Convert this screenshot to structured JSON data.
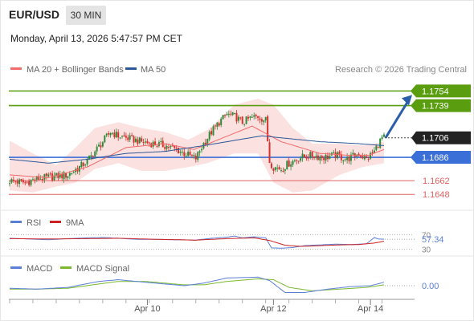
{
  "header": {
    "pair": "EUR/USD",
    "timeframe": "30 MIN",
    "datetime": "Monday, April 13, 2026 5:47:57 PM CET"
  },
  "colors": {
    "ma20": "#f06b6b",
    "ma50": "#2b5797",
    "bb_fill": "#fcdcdc",
    "bull": "#2e8b3a",
    "bear": "#d9302c",
    "resistance": "#5a9e10",
    "pivot": "#3a6fd8",
    "support": "#e06060",
    "price_tag": "#222222",
    "rsi": "#5b7fd6",
    "rsi_ma": "#cc2222",
    "macd": "#5b7fd6",
    "macd_signal": "#7ab830",
    "arrow": "#2b5ea8"
  },
  "chart_data": [
    {
      "type": "candlestick",
      "title": "",
      "legend": {
        "position": "top-left",
        "items": [
          "MA 20 + Bollinger Bands",
          "MA 50"
        ]
      },
      "credit": "Research © 2026 Trading Central",
      "x_ticks": [
        "Apr 10",
        "Apr 12",
        "Apr 14"
      ],
      "ylim": [
        1.1635,
        1.1765
      ],
      "last_price": "1.1706",
      "levels": [
        {
          "label": "1.1754",
          "value": 1.1754,
          "kind": "resistance"
        },
        {
          "label": "1.1739",
          "value": 1.1739,
          "kind": "resistance"
        },
        {
          "label": "1.1686",
          "value": 1.1686,
          "kind": "pivot"
        },
        {
          "label": "1.1662",
          "value": 1.1662,
          "kind": "support"
        },
        {
          "label": "1.1648",
          "value": 1.1648,
          "kind": "support"
        }
      ],
      "close_path": [
        [
          0,
          1.1662
        ],
        [
          8,
          1.166
        ],
        [
          14,
          1.1664
        ],
        [
          22,
          1.1666
        ],
        [
          30,
          1.1668
        ],
        [
          36,
          1.1676
        ],
        [
          40,
          1.1682
        ],
        [
          44,
          1.1692
        ],
        [
          48,
          1.1702
        ],
        [
          52,
          1.1712
        ],
        [
          56,
          1.1708
        ],
        [
          62,
          1.1705
        ],
        [
          68,
          1.1702
        ],
        [
          74,
          1.17
        ],
        [
          80,
          1.1698
        ],
        [
          86,
          1.1694
        ],
        [
          90,
          1.169
        ],
        [
          96,
          1.1685
        ],
        [
          100,
          1.17
        ],
        [
          104,
          1.1712
        ],
        [
          108,
          1.1722
        ],
        [
          112,
          1.173
        ],
        [
          116,
          1.1728
        ],
        [
          120,
          1.1722
        ],
        [
          124,
          1.1726
        ],
        [
          128,
          1.1728
        ],
        [
          132,
          1.1724
        ],
        [
          134,
          1.1682
        ],
        [
          136,
          1.1676
        ],
        [
          140,
          1.1674
        ],
        [
          144,
          1.168
        ],
        [
          150,
          1.1686
        ],
        [
          156,
          1.1688
        ],
        [
          162,
          1.1686
        ],
        [
          168,
          1.1688
        ],
        [
          174,
          1.1684
        ],
        [
          180,
          1.169
        ],
        [
          184,
          1.1684
        ],
        [
          188,
          1.1692
        ],
        [
          190,
          1.17
        ],
        [
          192,
          1.1706
        ],
        [
          193,
          1.1706
        ]
      ],
      "ma20_path": [
        [
          0,
          1.1668
        ],
        [
          20,
          1.1665
        ],
        [
          40,
          1.1676
        ],
        [
          60,
          1.1696
        ],
        [
          80,
          1.17
        ],
        [
          95,
          1.1694
        ],
        [
          110,
          1.1706
        ],
        [
          125,
          1.1718
        ],
        [
          140,
          1.1702
        ],
        [
          160,
          1.169
        ],
        [
          175,
          1.1688
        ],
        [
          185,
          1.1688
        ],
        [
          193,
          1.1694
        ]
      ],
      "ma50_path": [
        [
          0,
          1.1684
        ],
        [
          20,
          1.168
        ],
        [
          40,
          1.1684
        ],
        [
          60,
          1.169
        ],
        [
          80,
          1.1692
        ],
        [
          100,
          1.1698
        ],
        [
          115,
          1.1703
        ],
        [
          130,
          1.1708
        ],
        [
          140,
          1.1706
        ],
        [
          160,
          1.1702
        ],
        [
          180,
          1.17
        ],
        [
          193,
          1.1698
        ]
      ],
      "bb_upper_path": [
        [
          0,
          1.1703
        ],
        [
          12,
          1.169
        ],
        [
          24,
          1.1678
        ],
        [
          34,
          1.1696
        ],
        [
          44,
          1.1716
        ],
        [
          56,
          1.1722
        ],
        [
          68,
          1.1716
        ],
        [
          80,
          1.1712
        ],
        [
          92,
          1.1704
        ],
        [
          102,
          1.1714
        ],
        [
          116,
          1.174
        ],
        [
          128,
          1.1746
        ],
        [
          136,
          1.174
        ],
        [
          146,
          1.1716
        ],
        [
          156,
          1.17
        ],
        [
          170,
          1.17
        ],
        [
          182,
          1.1698
        ],
        [
          193,
          1.1702
        ]
      ],
      "bb_lower_path": [
        [
          0,
          1.1652
        ],
        [
          12,
          1.165
        ],
        [
          24,
          1.1656
        ],
        [
          34,
          1.166
        ],
        [
          44,
          1.1674
        ],
        [
          56,
          1.168
        ],
        [
          68,
          1.1672
        ],
        [
          80,
          1.1672
        ],
        [
          92,
          1.1676
        ],
        [
          102,
          1.168
        ],
        [
          116,
          1.169
        ],
        [
          128,
          1.169
        ],
        [
          136,
          1.166
        ],
        [
          146,
          1.165
        ],
        [
          156,
          1.1652
        ],
        [
          170,
          1.1668
        ],
        [
          182,
          1.1676
        ],
        [
          193,
          1.168
        ]
      ]
    },
    {
      "type": "line",
      "title": "",
      "legend": {
        "position": "top-left",
        "items": [
          "RSI",
          "9MA"
        ]
      },
      "ylim": [
        25,
        75
      ],
      "y_ticks": [
        "70",
        "30"
      ],
      "last_value": "57.34",
      "rsi_path": [
        [
          0,
          60
        ],
        [
          10,
          58
        ],
        [
          20,
          56
        ],
        [
          30,
          59
        ],
        [
          40,
          61
        ],
        [
          48,
          62
        ],
        [
          56,
          60
        ],
        [
          66,
          57
        ],
        [
          76,
          57
        ],
        [
          86,
          56
        ],
        [
          96,
          55
        ],
        [
          104,
          60
        ],
        [
          112,
          63
        ],
        [
          116,
          66
        ],
        [
          120,
          61
        ],
        [
          126,
          64
        ],
        [
          132,
          61
        ],
        [
          135,
          34
        ],
        [
          140,
          33
        ],
        [
          146,
          35
        ],
        [
          152,
          40
        ],
        [
          160,
          42
        ],
        [
          168,
          44
        ],
        [
          176,
          43
        ],
        [
          184,
          45
        ],
        [
          188,
          62
        ],
        [
          190,
          58
        ],
        [
          193,
          57.34
        ]
      ],
      "ma9_path": [
        [
          0,
          59
        ],
        [
          20,
          58
        ],
        [
          40,
          59
        ],
        [
          56,
          60
        ],
        [
          76,
          57
        ],
        [
          96,
          55
        ],
        [
          112,
          59
        ],
        [
          126,
          61
        ],
        [
          134,
          54
        ],
        [
          142,
          41
        ],
        [
          150,
          38
        ],
        [
          160,
          40
        ],
        [
          170,
          42
        ],
        [
          180,
          43
        ],
        [
          188,
          47
        ],
        [
          193,
          52
        ]
      ]
    },
    {
      "type": "line",
      "title": "",
      "legend": {
        "position": "top-left",
        "items": [
          "MACD",
          "MACD Signal"
        ]
      },
      "ylim": [
        -0.003,
        0.003
      ],
      "last_value": "0.00",
      "macd_path": [
        [
          0,
          -0.0006
        ],
        [
          14,
          -0.0008
        ],
        [
          30,
          -0.0004
        ],
        [
          46,
          0.001
        ],
        [
          56,
          0.0014
        ],
        [
          70,
          0.0008
        ],
        [
          90,
          0.0
        ],
        [
          100,
          0.0006
        ],
        [
          112,
          0.0018
        ],
        [
          128,
          0.002
        ],
        [
          134,
          0.0012
        ],
        [
          142,
          -0.0016
        ],
        [
          152,
          -0.0016
        ],
        [
          164,
          -0.0008
        ],
        [
          176,
          -0.0002
        ],
        [
          186,
          0.0
        ],
        [
          193,
          0.0008
        ]
      ],
      "signal_path": [
        [
          0,
          -0.0008
        ],
        [
          14,
          -0.0008
        ],
        [
          30,
          -0.0006
        ],
        [
          46,
          0.0004
        ],
        [
          56,
          0.001
        ],
        [
          70,
          0.001
        ],
        [
          90,
          0.0002
        ],
        [
          100,
          0.0002
        ],
        [
          112,
          0.001
        ],
        [
          128,
          0.0016
        ],
        [
          136,
          0.0014
        ],
        [
          144,
          -0.0004
        ],
        [
          156,
          -0.0012
        ],
        [
          170,
          -0.0008
        ],
        [
          184,
          -0.0004
        ],
        [
          193,
          0.0002
        ]
      ]
    }
  ]
}
